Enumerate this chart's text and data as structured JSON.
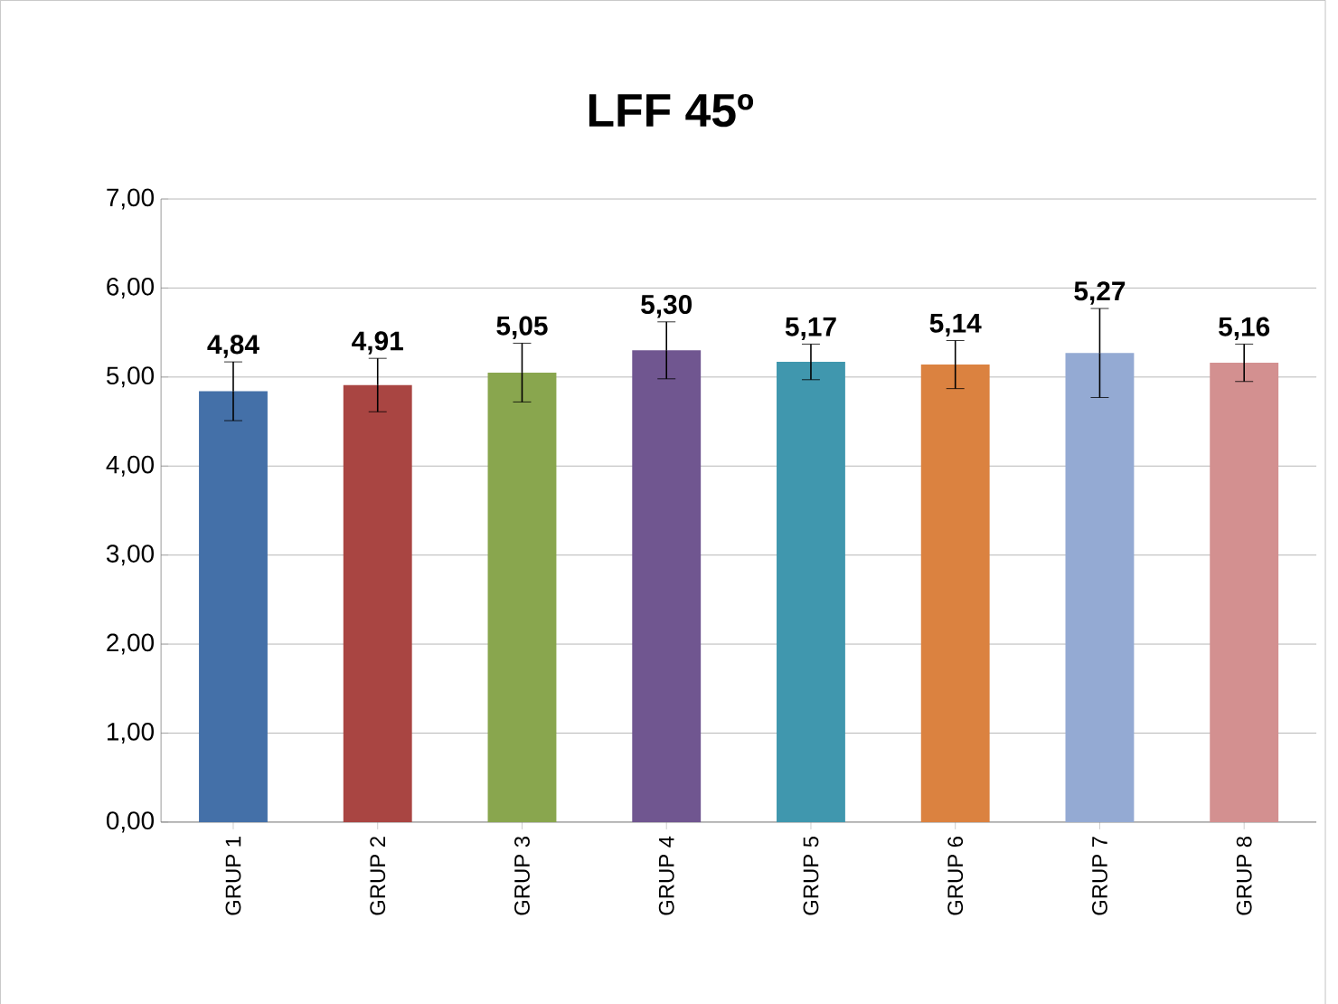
{
  "chart_data": {
    "type": "bar",
    "title": "LFF 45º",
    "categories": [
      "GRUP 1",
      "GRUP 2",
      "GRUP 3",
      "GRUP 4",
      "GRUP 5",
      "GRUP 6",
      "GRUP 7",
      "GRUP 8"
    ],
    "values": [
      4.84,
      4.91,
      5.05,
      5.3,
      5.17,
      5.14,
      5.27,
      5.16
    ],
    "value_labels": [
      "4,84",
      "4,91",
      "5,05",
      "5,30",
      "5,17",
      "5,14",
      "5,27",
      "5,16"
    ],
    "errors": [
      0.33,
      0.3,
      0.33,
      0.32,
      0.2,
      0.27,
      0.5,
      0.21
    ],
    "colors": [
      "#4470a8",
      "#a94542",
      "#89a64e",
      "#705690",
      "#4097ae",
      "#db8240",
      "#94aad3",
      "#d39090"
    ],
    "ylim": [
      0,
      7
    ],
    "yticks": [
      {
        "value": 0,
        "label": "0,00"
      },
      {
        "value": 1,
        "label": "1,00"
      },
      {
        "value": 2,
        "label": "2,00"
      },
      {
        "value": 3,
        "label": "3,00"
      },
      {
        "value": 4,
        "label": "4,00"
      },
      {
        "value": 5,
        "label": "5,00"
      },
      {
        "value": 6,
        "label": "6,00"
      },
      {
        "value": 7,
        "label": "7,00"
      }
    ],
    "grid": "y"
  }
}
